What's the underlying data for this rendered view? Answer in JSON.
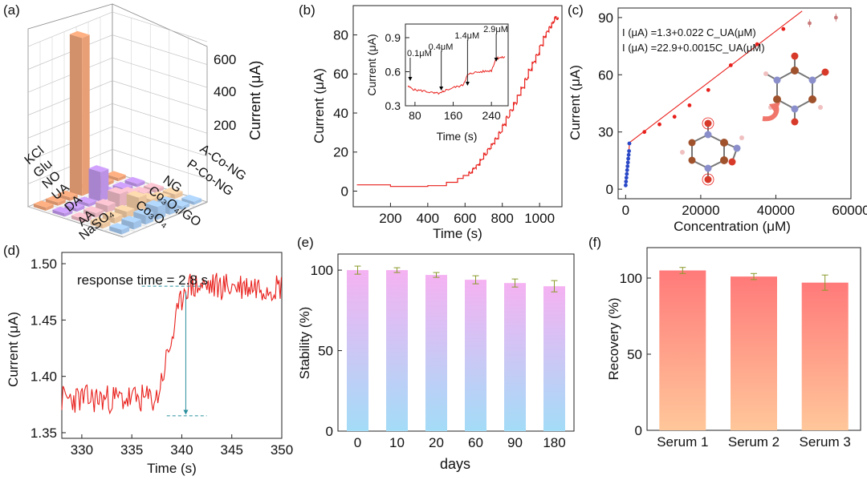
{
  "panels": {
    "a": {
      "label": "(a)",
      "zlabel": "Current (μA)",
      "zticks": [
        "200",
        "400",
        "600"
      ],
      "rows": [
        "KCl",
        "Glu",
        "NO",
        "UA",
        "DA",
        "AA",
        "NaSO₄"
      ],
      "cols": [
        "A-Co-NG",
        "P-Co-NG",
        "NG",
        "Co₃O₄/GO",
        "Co₃O₄"
      ]
    },
    "b": {
      "label": "(b)",
      "xlabel": "Time (s)",
      "ylabel": "Current (μA)",
      "inset": {
        "xlabel": "Time (s)",
        "ylabel": "Current (μA)",
        "annotations": [
          "0.1μM",
          "0.4μM",
          "1.4μM",
          "2.9μM"
        ]
      }
    },
    "c": {
      "label": "(c)",
      "xlabel": "Concentration (μM)",
      "ylabel": "Current (μA)",
      "eq1": "I (μA) =1.3+0.022 C_UA(μM)",
      "eq2": "I (μA) =22.9+0.0015C_UA(μM)"
    },
    "d": {
      "label": "(d)",
      "xlabel": "Time (s)",
      "ylabel": "Current (μA)",
      "annotation": "response time = 2.8 s"
    },
    "e": {
      "label": "(e)",
      "xlabel": "days",
      "ylabel": "Stability (%)"
    },
    "f": {
      "label": "(f)",
      "xlabel": "",
      "ylabel": "Recovery (%)"
    }
  },
  "chart_data": [
    {
      "id": "a",
      "type": "bar3d",
      "zlabel": "Current (μA)",
      "zlim": [
        0,
        700
      ],
      "rows": [
        "KCl",
        "Glu",
        "NO",
        "UA",
        "DA",
        "AA",
        "NaSO₄"
      ],
      "series": [
        {
          "name": "A-Co-NG",
          "color": "#f4a77c",
          "values": [
            5,
            5,
            8,
            690,
            15,
            10,
            5
          ]
        },
        {
          "name": "P-Co-NG",
          "color": "#c59af0",
          "values": [
            5,
            5,
            15,
            130,
            10,
            8,
            5
          ]
        },
        {
          "name": "NG",
          "color": "#f2bcc8",
          "values": [
            15,
            20,
            40,
            60,
            30,
            20,
            15
          ]
        },
        {
          "name": "Co₃O₄/GO",
          "color": "#f7cfa6",
          "values": [
            20,
            25,
            40,
            70,
            30,
            25,
            20
          ]
        },
        {
          "name": "Co₃O₄",
          "color": "#a9cdf3",
          "values": [
            10,
            15,
            50,
            55,
            40,
            30,
            20
          ]
        }
      ]
    },
    {
      "id": "b",
      "type": "line",
      "xlim": [
        0,
        1120
      ],
      "ylim": [
        -8,
        95
      ],
      "xticks": [
        200,
        400,
        600,
        800,
        1000
      ],
      "yticks": [
        0,
        20,
        40,
        60,
        80
      ],
      "x": [
        20,
        200,
        400,
        500,
        560,
        620,
        660,
        700,
        740,
        780,
        820,
        860,
        900,
        940,
        980,
        1020,
        1050,
        1080,
        1100
      ],
      "y": [
        3.2,
        2.4,
        2.8,
        4.5,
        6.5,
        9.5,
        13.5,
        19,
        24,
        30,
        38,
        45,
        53,
        62,
        70,
        79,
        84,
        89,
        88
      ],
      "inset": {
        "xlim": [
          60,
          275
        ],
        "ylim": [
          0.3,
          1.02
        ],
        "xticks": [
          80,
          160,
          240
        ],
        "yticks": [
          0.3,
          0.6,
          0.9
        ],
        "x": [
          65,
          80,
          100,
          120,
          135,
          140,
          160,
          180,
          190,
          200,
          220,
          240,
          250,
          255,
          270
        ],
        "y": [
          0.47,
          0.44,
          0.43,
          0.41,
          0.41,
          0.43,
          0.46,
          0.48,
          0.57,
          0.59,
          0.6,
          0.61,
          0.72,
          0.72,
          0.73
        ],
        "arrows": [
          {
            "x": 70,
            "label": "0.1μM"
          },
          {
            "x": 135,
            "label": "0.4μM"
          },
          {
            "x": 190,
            "label": "1.4μM"
          },
          {
            "x": 250,
            "label": "2.9μM"
          }
        ]
      }
    },
    {
      "id": "c",
      "type": "scatter",
      "xlim": [
        -2000,
        60000
      ],
      "ylim": [
        -5,
        95
      ],
      "xticks": [
        0,
        20000,
        40000,
        60000
      ],
      "yticks": [
        0,
        30,
        60,
        90
      ],
      "x": [
        0,
        100,
        200,
        300,
        400,
        500,
        600,
        700,
        800,
        900,
        1000,
        5000,
        9000,
        13000,
        17000,
        22000,
        28000,
        35000,
        42000,
        49000,
        56000
      ],
      "y": [
        2,
        4,
        6,
        8,
        10,
        12,
        14,
        16,
        18,
        20,
        24,
        30,
        34,
        38,
        44,
        52,
        65,
        76,
        84,
        87,
        90
      ],
      "fit": [
        {
          "x0": 0,
          "x1": 1000,
          "a": 1.3,
          "b": 0.022
        },
        {
          "x0": 500,
          "x1": 47000,
          "a": 22.9,
          "b": 0.0015
        }
      ]
    },
    {
      "id": "d",
      "type": "line",
      "xlim": [
        328,
        350
      ],
      "ylim": [
        1.345,
        1.51
      ],
      "xticks": [
        330,
        335,
        340,
        345,
        350
      ],
      "yticks": [
        1.35,
        1.4,
        1.45,
        1.5
      ],
      "baseline": 1.38,
      "plateau": 1.48,
      "t_start": 337.5,
      "t_end": 340.3
    },
    {
      "id": "e",
      "type": "bar",
      "categories": [
        "0",
        "10",
        "20",
        "60",
        "90",
        "180"
      ],
      "values": [
        100,
        100,
        97,
        94,
        92,
        90
      ],
      "errors": [
        2.5,
        1.5,
        1.5,
        2.5,
        2.5,
        3.5
      ],
      "ylim": [
        0,
        110
      ],
      "yticks": [
        0,
        50,
        100
      ],
      "xlabel": "days",
      "ylabel": "Stability (%)"
    },
    {
      "id": "f",
      "type": "bar",
      "categories": [
        "Serum 1",
        "Serum 2",
        "Serum 3"
      ],
      "values": [
        105,
        101,
        97
      ],
      "errors": [
        2,
        2,
        5
      ],
      "ylim": [
        0,
        120
      ],
      "yticks": [
        0,
        50,
        100
      ],
      "ylabel": "Recovery (%)"
    }
  ]
}
